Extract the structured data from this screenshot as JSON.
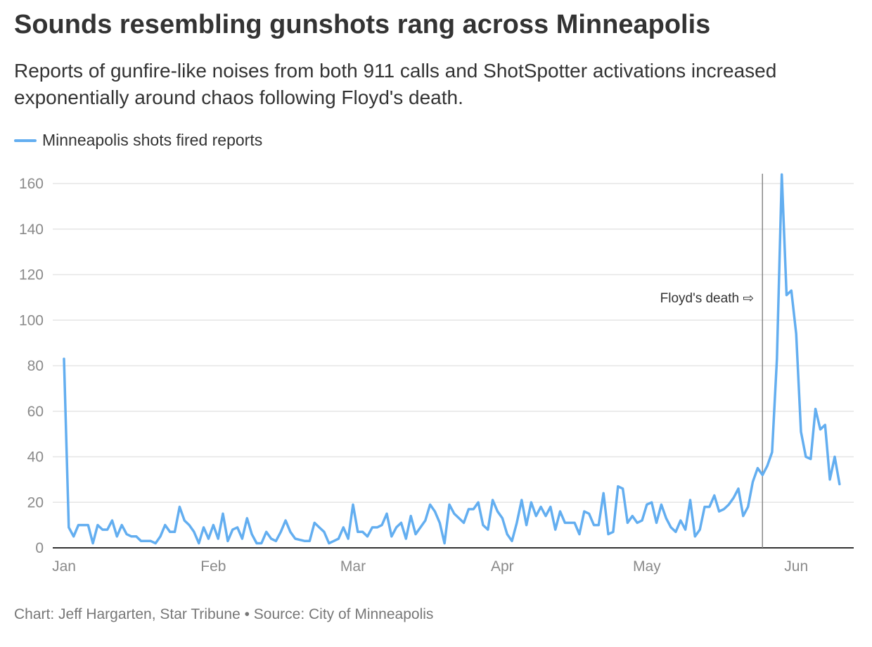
{
  "header": {
    "title": "Sounds resembling gunshots rang across Minneapolis",
    "subtitle": "Reports of gunfire-like noises from both 911 calls and ShotSpotter activations increased exponentially around chaos following Floyd's death."
  },
  "footer": {
    "credit": "Chart: Jeff Hargarten, Star Tribune • Source: City of Minneapolis"
  },
  "colors": {
    "series": "#63aef0",
    "grid": "#e5e5e5",
    "axis": "#333333",
    "annotation_line": "#888888"
  },
  "chart_data": {
    "type": "line",
    "title": "Sounds resembling gunshots rang across Minneapolis",
    "x_start": "2020-01-01",
    "x_tick_labels": [
      {
        "label": "Jan",
        "date": "2020-01-01"
      },
      {
        "label": "Feb",
        "date": "2020-02-01"
      },
      {
        "label": "Mar",
        "date": "2020-03-01"
      },
      {
        "label": "Apr",
        "date": "2020-04-01"
      },
      {
        "label": "May",
        "date": "2020-05-01"
      },
      {
        "label": "Jun",
        "date": "2020-06-01"
      }
    ],
    "y_ticks": [
      0,
      20,
      40,
      60,
      80,
      100,
      120,
      140,
      160
    ],
    "ylim": [
      0,
      165
    ],
    "grid": true,
    "legend_position": "top-left",
    "series": [
      {
        "name": "Minneapolis shots fired reports",
        "values": [
          83,
          9,
          5,
          10,
          10,
          10,
          2,
          10,
          8,
          8,
          12,
          5,
          10,
          6,
          5,
          5,
          3,
          3,
          3,
          2,
          5,
          10,
          7,
          7,
          18,
          12,
          10,
          7,
          2,
          9,
          4,
          10,
          4,
          15,
          3,
          8,
          9,
          4,
          13,
          6,
          2,
          2,
          7,
          4,
          3,
          7,
          12,
          7,
          4,
          3.5,
          3,
          3,
          11,
          9,
          7,
          2,
          3,
          4,
          9,
          4,
          19,
          7,
          7,
          5,
          9,
          9,
          10,
          15,
          5,
          9,
          11,
          4,
          14,
          6,
          9,
          12,
          19,
          16,
          11,
          2,
          19,
          15,
          13,
          11,
          17,
          17,
          20,
          10,
          8,
          21,
          16,
          13,
          6,
          3,
          11,
          21,
          10,
          20,
          14,
          18,
          14,
          18,
          8,
          16,
          11,
          11,
          11,
          6,
          16,
          15,
          10,
          10,
          24,
          6,
          7,
          27,
          26,
          11,
          14,
          11,
          12,
          19,
          20,
          11,
          19,
          13,
          9,
          7,
          12,
          8,
          21,
          5,
          8,
          18,
          18,
          23,
          16,
          17,
          19,
          22,
          26,
          14,
          18,
          29,
          35,
          32,
          36,
          42,
          83,
          164,
          111,
          113,
          94,
          51,
          40,
          39,
          61,
          52,
          54,
          30,
          40,
          28
        ]
      }
    ],
    "annotations": [
      {
        "label": "Floyd's death ⇨",
        "date": "2020-05-25"
      }
    ]
  }
}
